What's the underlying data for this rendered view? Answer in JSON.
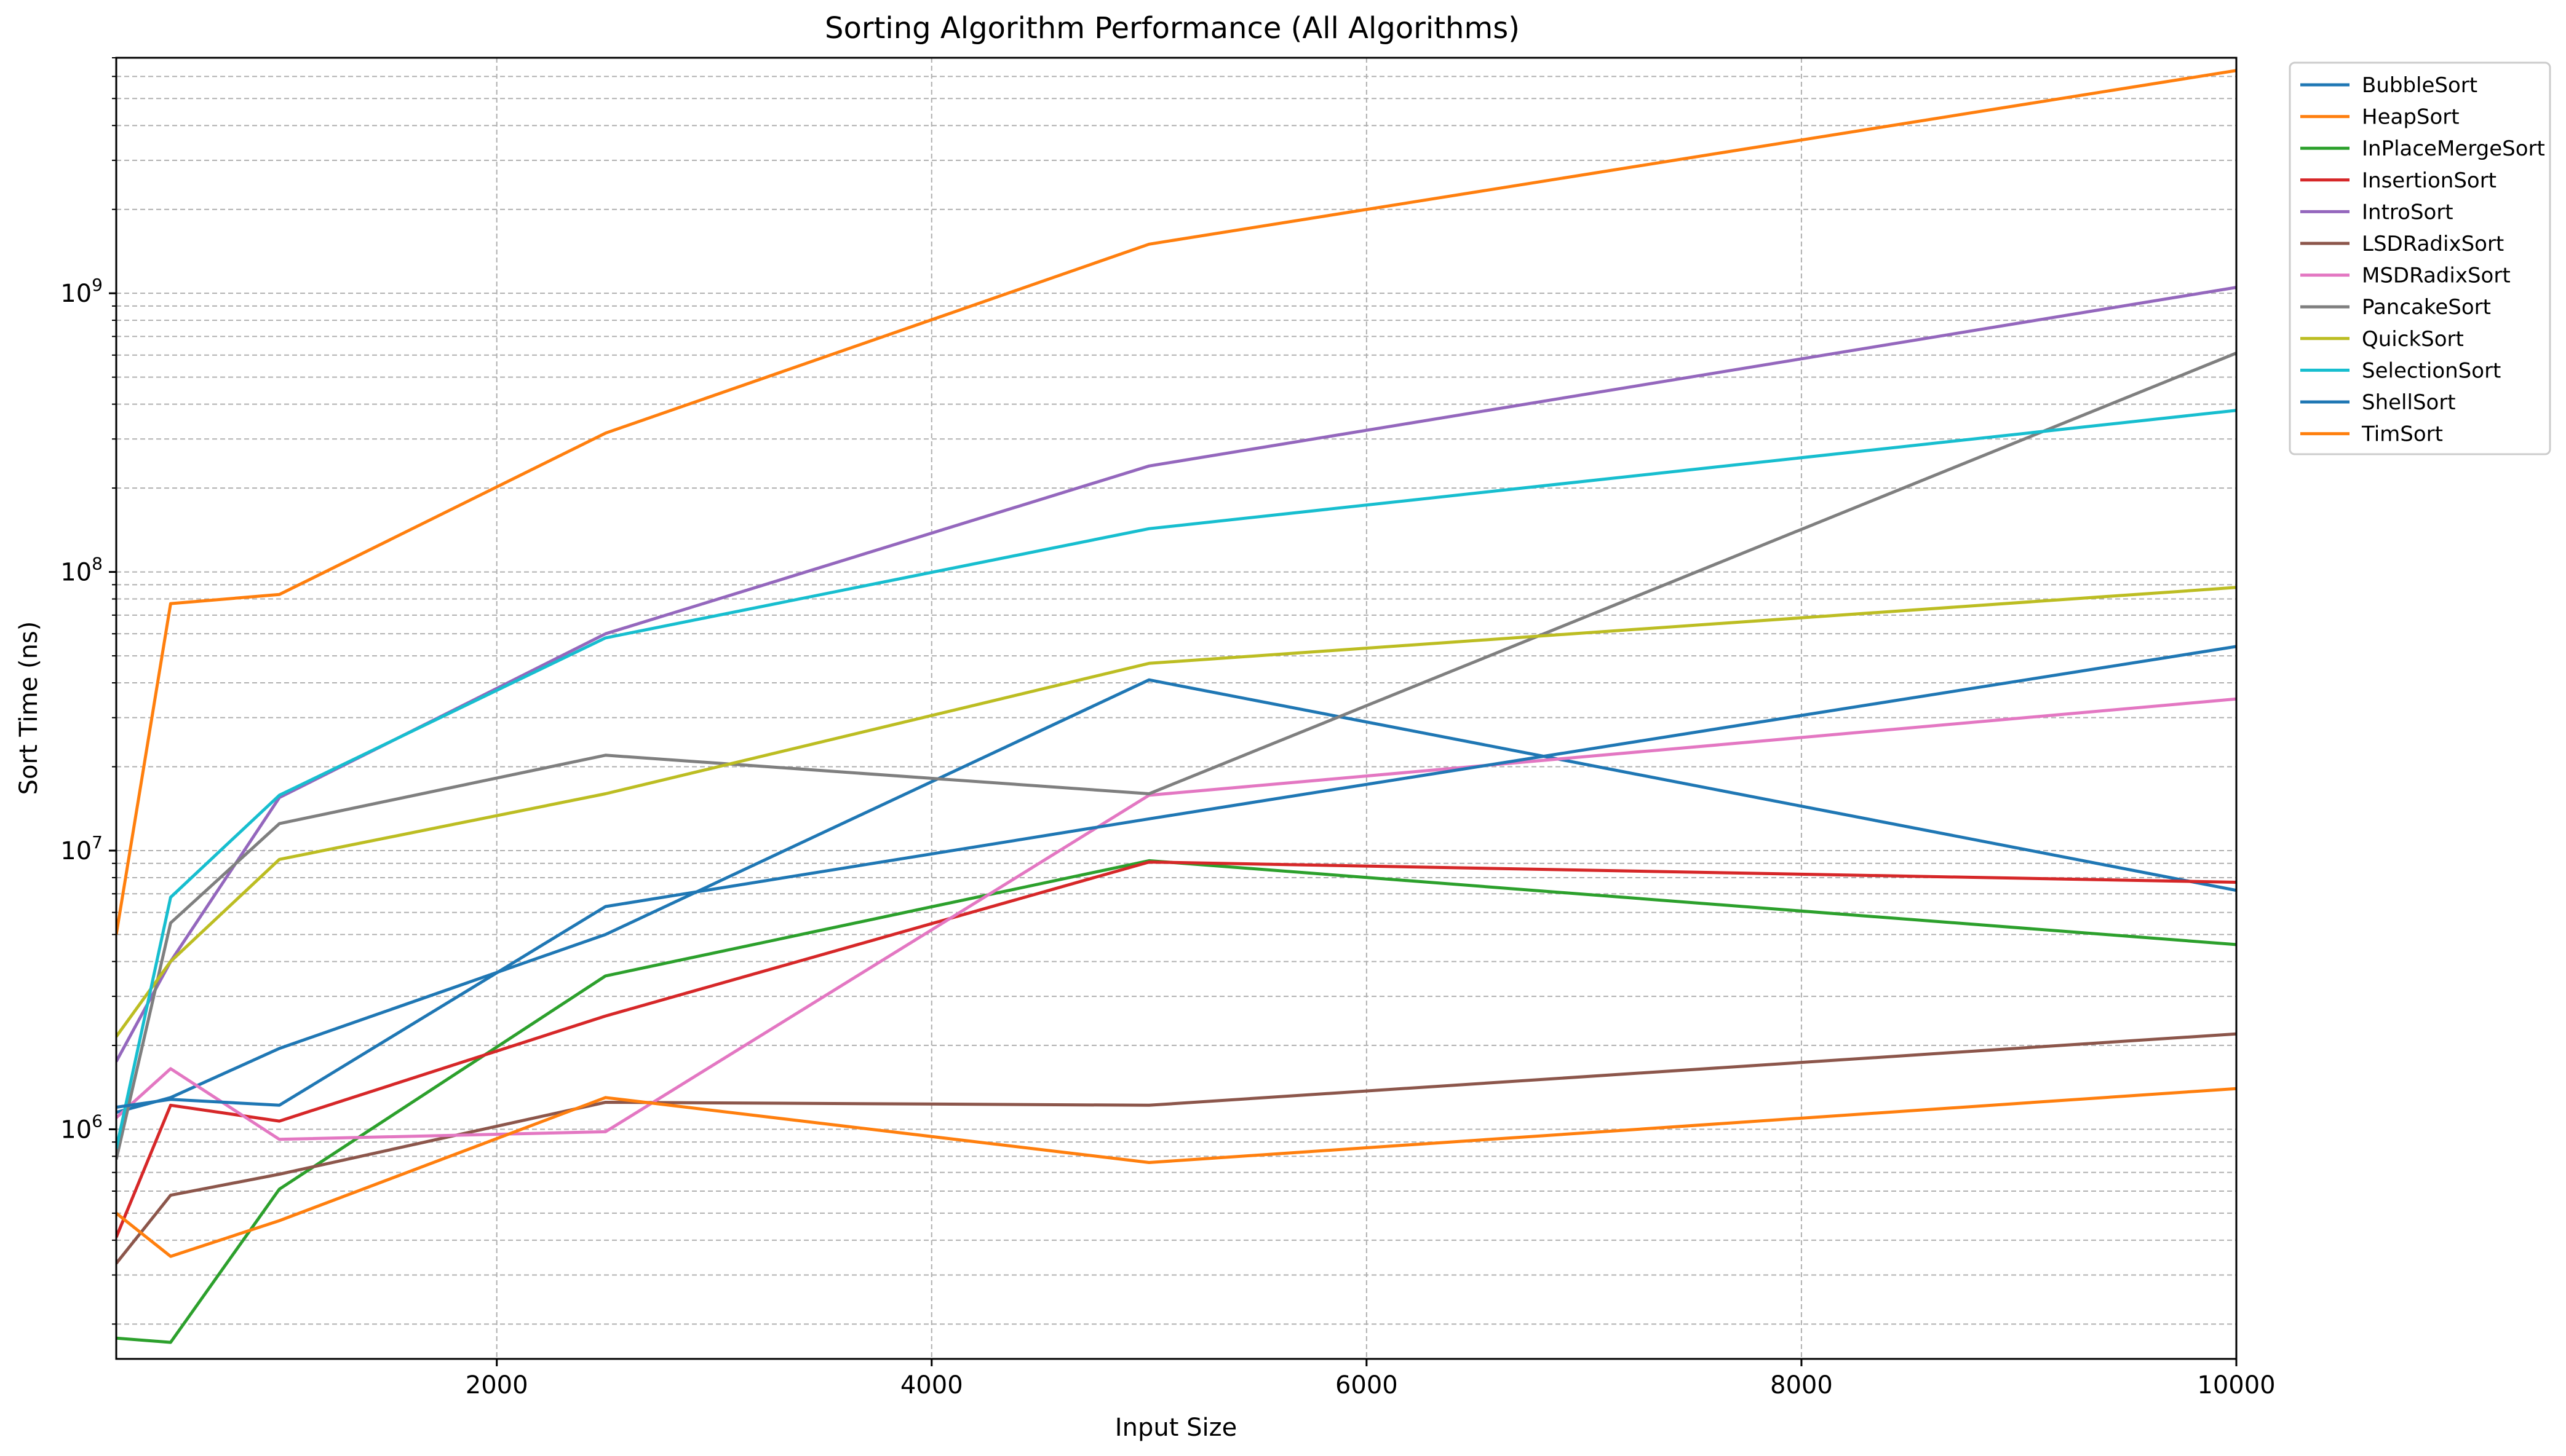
{
  "chart_data": {
    "type": "line",
    "title": "Sorting Algorithm Performance (All Algorithms)",
    "xlabel": "Input Size",
    "ylabel": "Sort Time (ns)",
    "yscale": "log",
    "xlim": [
      250,
      10000
    ],
    "ylim": [
      150000,
      7000000000
    ],
    "grid": true,
    "legend_position": "outside-right-top",
    "x_ticks": [
      2000,
      4000,
      6000,
      8000,
      10000
    ],
    "y_ticks": [
      {
        "value": 1000000,
        "base": "10",
        "exp": "6"
      },
      {
        "value": 10000000,
        "base": "10",
        "exp": "7"
      },
      {
        "value": 100000000,
        "base": "10",
        "exp": "8"
      },
      {
        "value": 1000000000,
        "base": "10",
        "exp": "9"
      }
    ],
    "x": [
      250,
      500,
      1000,
      2500,
      5000,
      10000
    ],
    "series": [
      {
        "name": "BubbleSort",
        "color": "#1f77b4",
        "values": [
          1150000,
          1300000,
          1950000,
          5000000,
          41000000,
          7200000
        ]
      },
      {
        "name": "HeapSort",
        "color": "#ff7f0e",
        "values": [
          5000000,
          77000000,
          83000000,
          315000000,
          1500000000,
          6300000000
        ]
      },
      {
        "name": "InPlaceMergeSort",
        "color": "#2ca02c",
        "values": [
          178000,
          172000,
          610000,
          3550000,
          9200000,
          4600000
        ]
      },
      {
        "name": "InsertionSort",
        "color": "#d62728",
        "values": [
          410000,
          1220000,
          1070000,
          2550000,
          9100000,
          7700000
        ]
      },
      {
        "name": "IntroSort",
        "color": "#9467bd",
        "values": [
          1750000,
          4000000,
          15500000,
          60000000,
          240000000,
          1050000000
        ]
      },
      {
        "name": "LSDRadixSort",
        "color": "#8c564b",
        "values": [
          330000,
          580000,
          690000,
          1250000,
          1220000,
          2200000
        ]
      },
      {
        "name": "MSDRadixSort",
        "color": "#e377c2",
        "values": [
          1100000,
          1650000,
          920000,
          980000,
          15800000,
          35000000
        ]
      },
      {
        "name": "PancakeSort",
        "color": "#7f7f7f",
        "values": [
          780000,
          5500000,
          12500000,
          22000000,
          16000000,
          610000000
        ]
      },
      {
        "name": "QuickSort",
        "color": "#bcbd22",
        "values": [
          2150000,
          4000000,
          9300000,
          16000000,
          47000000,
          88000000
        ]
      },
      {
        "name": "SelectionSort",
        "color": "#17becf",
        "values": [
          850000,
          6800000,
          15800000,
          58000000,
          143000000,
          380000000
        ]
      },
      {
        "name": "ShellSort",
        "color": "#1f77b4",
        "values": [
          1200000,
          1280000,
          1220000,
          6300000,
          13000000,
          54000000
        ]
      },
      {
        "name": "TimSort",
        "color": "#ff7f0e",
        "values": [
          500000,
          350000,
          470000,
          1300000,
          760000,
          1400000
        ]
      }
    ]
  }
}
